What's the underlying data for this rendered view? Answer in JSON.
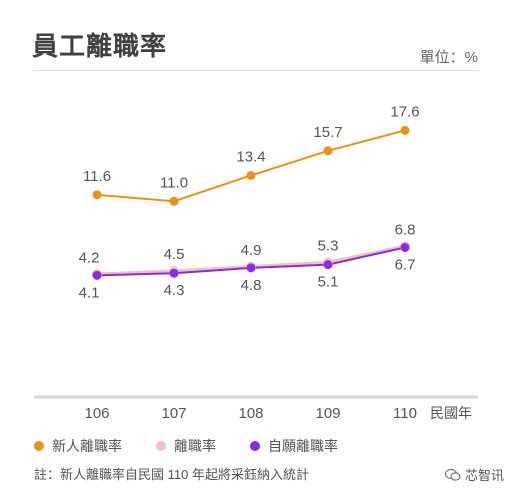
{
  "header": {
    "title": "員工離職率",
    "unit": "單位：%"
  },
  "chart_data": {
    "type": "line",
    "categories": [
      "106",
      "107",
      "108",
      "109",
      "110"
    ],
    "x_axis_suffix": "民國年",
    "series": [
      {
        "name": "新人離職率",
        "color": "#e8921c",
        "values": [
          11.6,
          11.0,
          13.4,
          15.7,
          17.6
        ]
      },
      {
        "name": "離職率",
        "color": "#f3c1c1",
        "values": [
          4.2,
          4.5,
          4.9,
          5.3,
          6.8
        ]
      },
      {
        "name": "自願離職率",
        "color": "#8a2be2",
        "values": [
          4.1,
          4.3,
          4.8,
          5.1,
          6.7
        ]
      }
    ],
    "ylim": [
      0,
      20
    ],
    "grid": false,
    "legend": "bottom-left"
  },
  "footnote": "註：新人離職率自民國 110 年起將采鈺納入統計",
  "watermark": {
    "label": "芯智讯",
    "icon": "wechat-icon"
  }
}
